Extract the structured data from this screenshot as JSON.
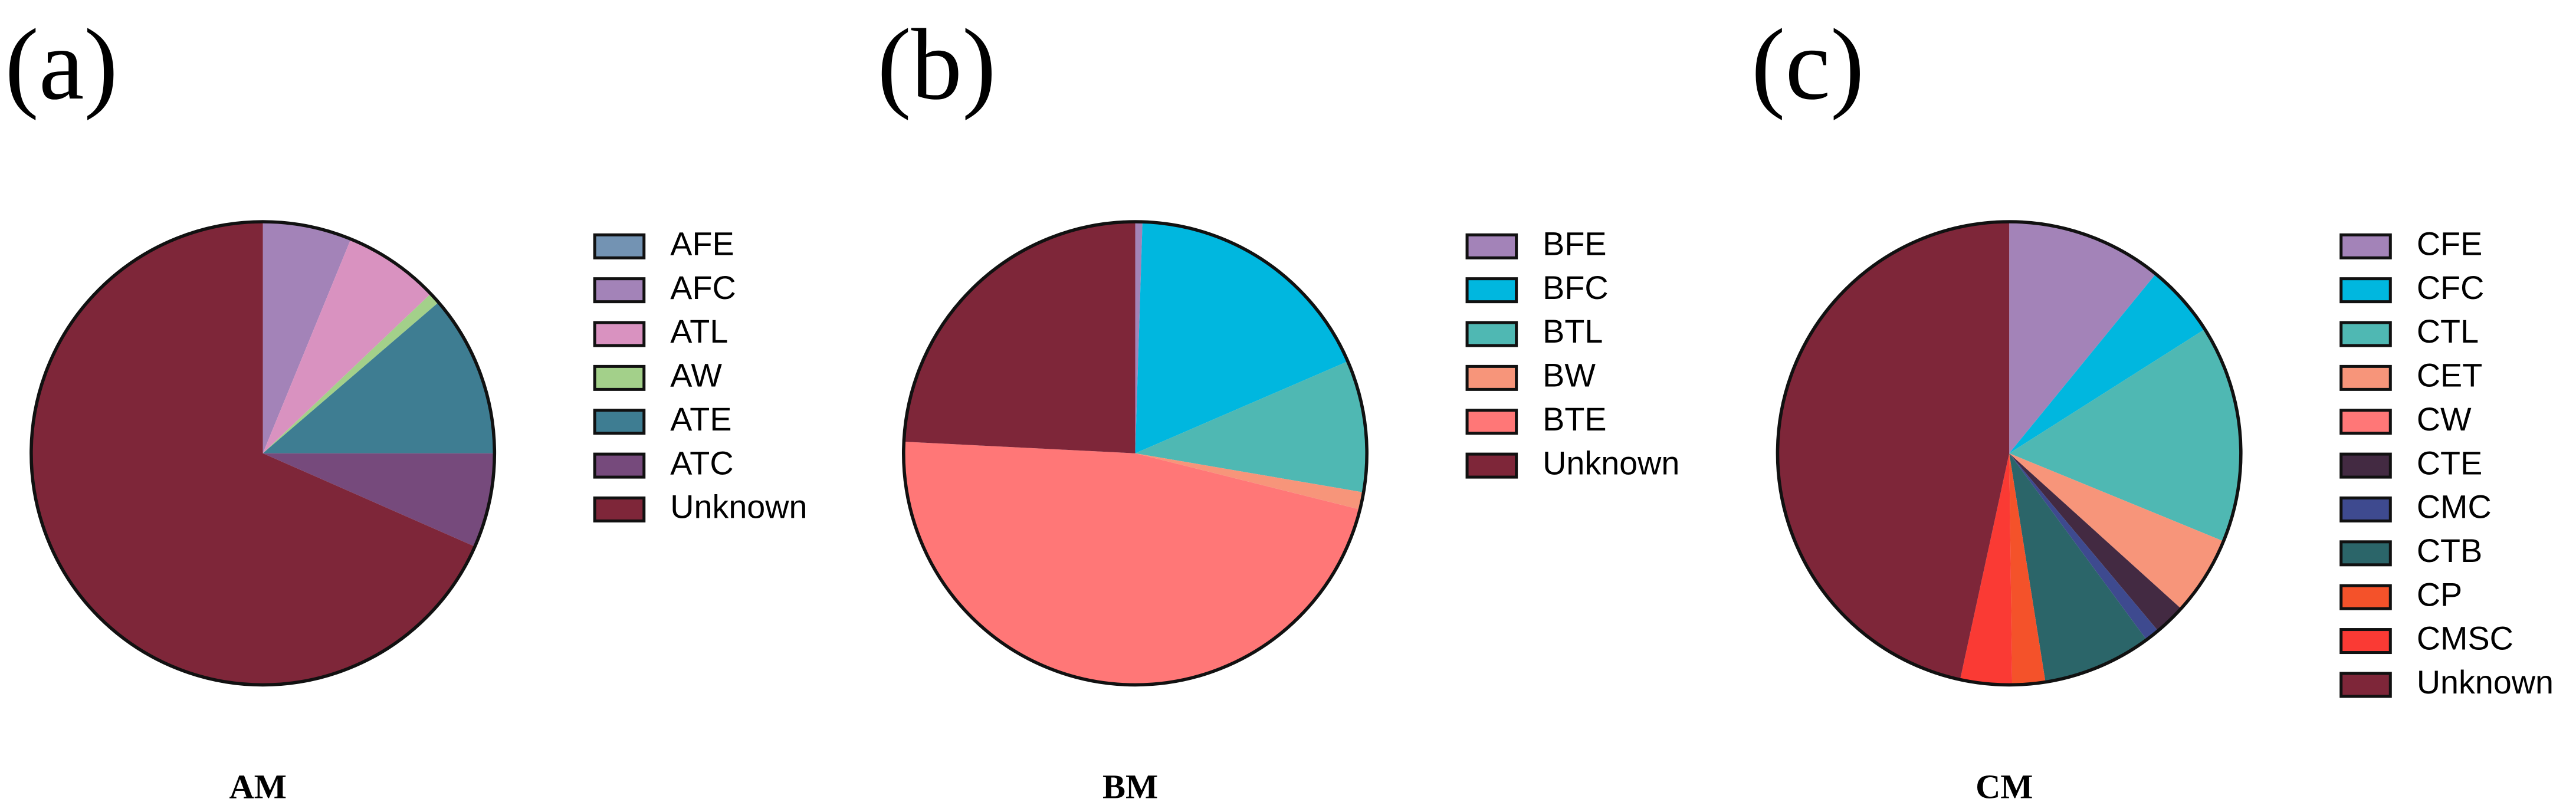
{
  "chart_data": [
    {
      "type": "pie",
      "label": "(a)",
      "title": "AM",
      "categories": [
        "AFE",
        "AFC",
        "ATL",
        "AW",
        "ATE",
        "ATC",
        "Unknown"
      ],
      "values": [
        0,
        6.2,
        6.7,
        0.8,
        11.3,
        6.6,
        68.4
      ],
      "colors": [
        "#7393b3",
        "#a383b8",
        "#d992c0",
        "#a3d08a",
        "#3e7d92",
        "#764a7c",
        "#7e2639"
      ]
    },
    {
      "type": "pie",
      "label": "(b)",
      "title": "BM",
      "categories": [
        "BFE",
        "BFC",
        "BTL",
        "BW",
        "BTE",
        "Unknown"
      ],
      "values": [
        0.5,
        18,
        9.2,
        1.2,
        46.9,
        24.2
      ],
      "colors": [
        "#a383b8",
        "#00b7df",
        "#4fb8b3",
        "#f7957a",
        "#ff7777",
        "#7e2639"
      ]
    },
    {
      "type": "pie",
      "label": "(c)",
      "title": "CM",
      "categories": [
        "CFE",
        "CFC",
        "CTL",
        "CET",
        "CW",
        "CTE",
        "CMC",
        "CTB",
        "CP",
        "CMSC",
        "Unknown"
      ],
      "values": [
        10.9,
        5.1,
        15.2,
        5.5,
        0,
        2.2,
        1.0,
        7.6,
        2.3,
        3.6,
        46.6
      ],
      "colors": [
        "#a383b8",
        "#00b7df",
        "#4fb8b3",
        "#f7957a",
        "#ff7777",
        "#432a42",
        "#3e4a8f",
        "#2b6569",
        "#f4522a",
        "#fa3a34",
        "#7e2639"
      ]
    }
  ]
}
